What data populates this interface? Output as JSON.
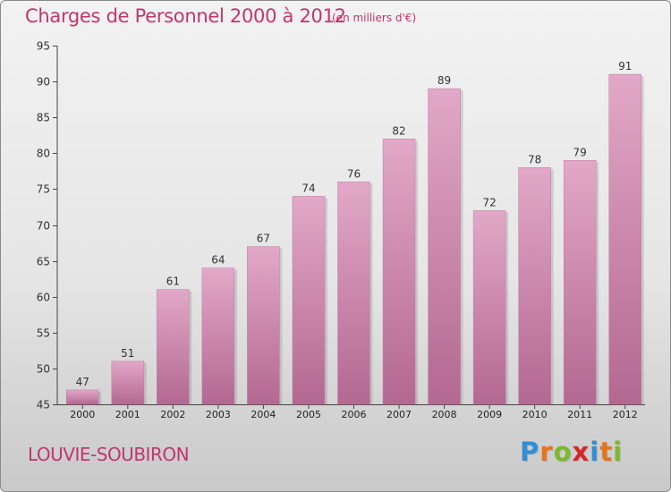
{
  "header": {
    "title": "Charges de Personnel 2000 à 2012",
    "subtitle": "(en milliers d'€)"
  },
  "footer": {
    "commune": "LOUVIE-SOUBIRON",
    "brand": "Proxiti",
    "brand_letters": [
      "P",
      "r",
      "o",
      "x",
      "i",
      "t",
      "i"
    ],
    "brand_colors": [
      "#2e8fd6",
      "#e8731a",
      "#7bb82a",
      "#d6262b",
      "#2e8fd6",
      "#e8731a",
      "#7bb82a"
    ]
  },
  "chart_data": {
    "type": "bar",
    "title": "Charges de Personnel 2000 à 2012",
    "subtitle": "(en milliers d'€)",
    "categories": [
      "2000",
      "2001",
      "2002",
      "2003",
      "2004",
      "2005",
      "2006",
      "2007",
      "2008",
      "2009",
      "2010",
      "2011",
      "2012"
    ],
    "values": [
      47,
      51,
      61,
      64,
      67,
      74,
      76,
      82,
      89,
      72,
      78,
      79,
      91
    ],
    "ylim": [
      45,
      95
    ],
    "yticks": [
      45,
      50,
      55,
      60,
      65,
      70,
      75,
      80,
      85,
      90,
      95
    ],
    "xlabel": "",
    "ylabel": "",
    "grid": false,
    "bar_color": "#d98db5"
  }
}
